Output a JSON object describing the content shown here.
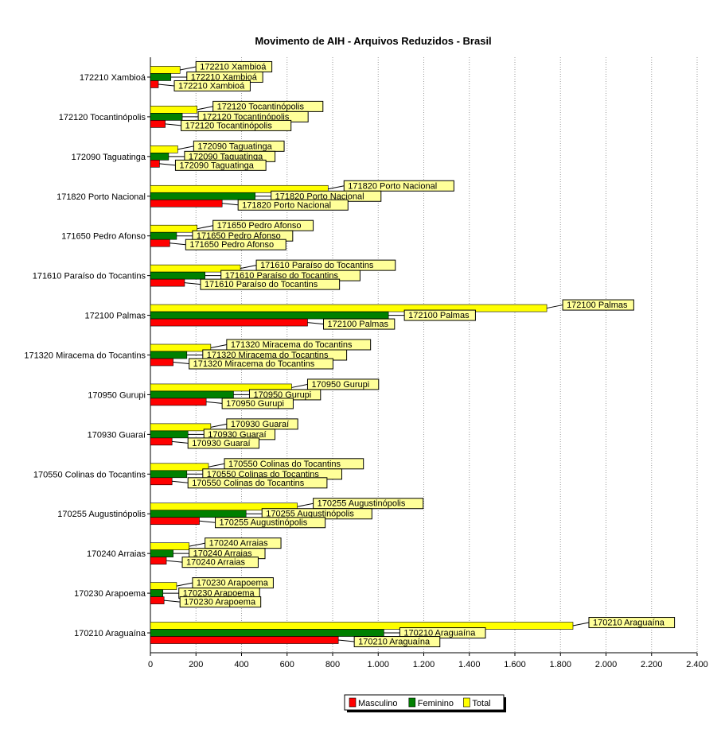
{
  "chart_data": {
    "type": "bar",
    "orientation": "horizontal",
    "title": "Movimento de AIH - Arquivos Reduzidos - Brasil",
    "xlabel": "",
    "ylabel": "",
    "xlim": [
      0,
      2400
    ],
    "grid": "vertical dotted",
    "legend_position": "bottom-center",
    "x_ticks": [
      0,
      200,
      400,
      600,
      800,
      1000,
      1200,
      1400,
      1600,
      1800,
      2000,
      2200,
      2400
    ],
    "x_tick_labels": [
      "0",
      "200",
      "400",
      "600",
      "800",
      "1.000",
      "1.200",
      "1.400",
      "1.600",
      "1.800",
      "2.000",
      "2.200",
      "2.400"
    ],
    "categories": [
      "172210 Xambioá",
      "172120 Tocantinópolis",
      "172090 Taguatinga",
      "171820 Porto Nacional",
      "171650 Pedro Afonso",
      "171610 Paraíso do Tocantins",
      "172100 Palmas",
      "171320 Miracema do Tocantins",
      "170950 Gurupi",
      "170930 Guaraí",
      "170550 Colinas do Tocantins",
      "170255 Augustinópolis",
      "170240 Arraias",
      "170230 Arapoema",
      "170210 Araguaína"
    ],
    "series": [
      {
        "name": "Total",
        "color": "#ffff00",
        "values": [
          130,
          205,
          120,
          780,
          205,
          395,
          1740,
          265,
          620,
          265,
          255,
          645,
          170,
          115,
          1855
        ]
      },
      {
        "name": "Feminino",
        "color": "#008000",
        "values": [
          90,
          140,
          80,
          460,
          115,
          240,
          1045,
          160,
          365,
          165,
          160,
          420,
          100,
          55,
          1025
        ]
      },
      {
        "name": "Masculino",
        "color": "#ff0000",
        "values": [
          35,
          65,
          40,
          315,
          85,
          150,
          690,
          100,
          245,
          95,
          95,
          215,
          70,
          60,
          825
        ]
      }
    ],
    "legend": [
      "Masculino",
      "Feminino",
      "Total"
    ]
  }
}
